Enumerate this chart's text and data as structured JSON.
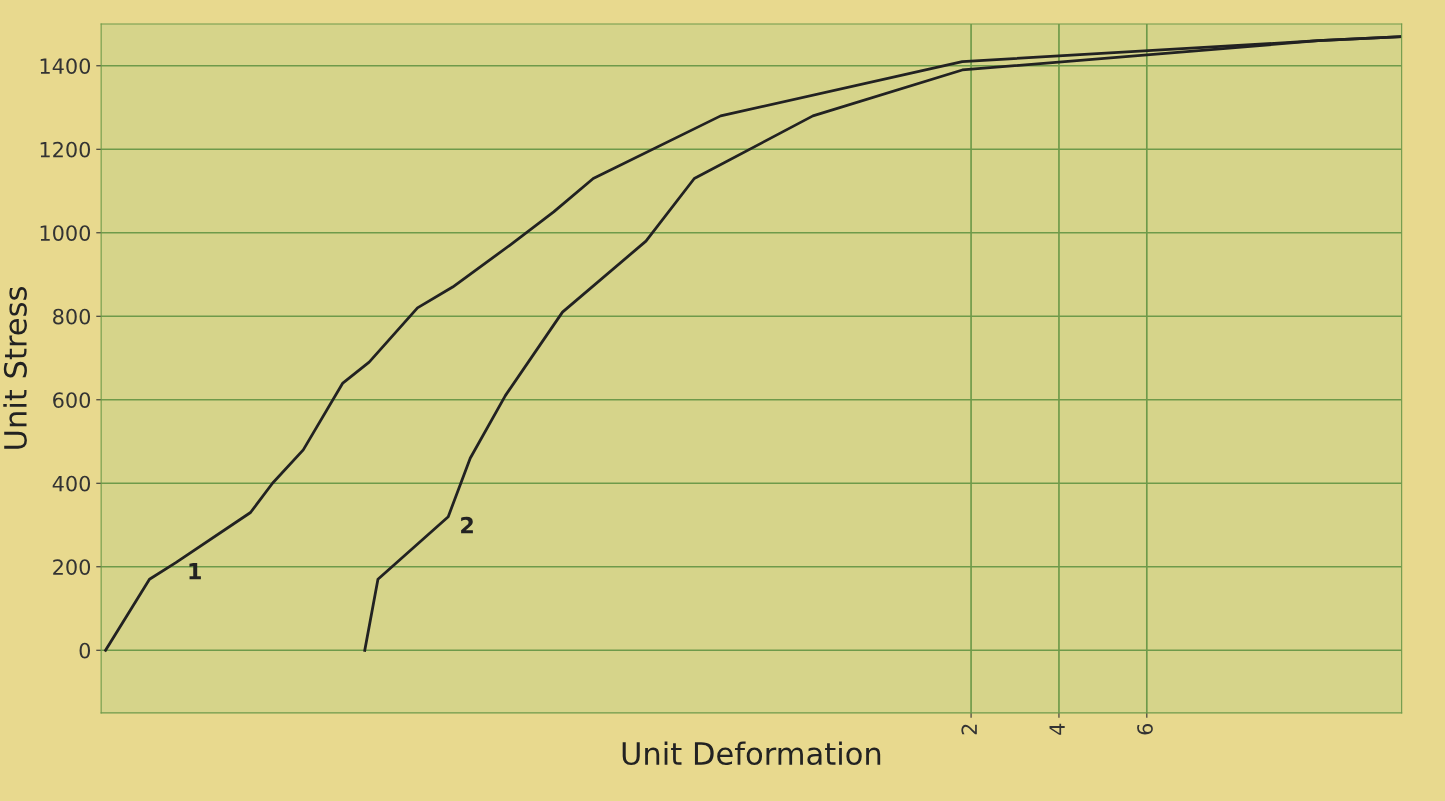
{
  "chart_data": {
    "type": "line",
    "xlabel": "Unit Deformation",
    "ylabel": "Unit Stress",
    "xlim": [
      -17.8,
      11.8
    ],
    "ylim": [
      -150,
      1500
    ],
    "xticks": [
      {
        "value": 2,
        "label": "2"
      },
      {
        "value": 4,
        "label": "4"
      },
      {
        "value": 6,
        "label": "6"
      }
    ],
    "yticks": [
      0,
      200,
      400,
      600,
      800,
      1000,
      1200,
      1400
    ],
    "grid": true,
    "legend": false,
    "marker": "none",
    "line_style": "solid",
    "series": [
      {
        "name": "1",
        "color": "#222222",
        "x": [
          -17.7,
          -16.7,
          -16.1,
          -14.4,
          -13.9,
          -13.2,
          -12.3,
          -11.7,
          -10.6,
          -9.8,
          -8.5,
          -7.5,
          -6.6,
          -3.7,
          1.8,
          9.9,
          11.8
        ],
        "values": [
          0,
          170,
          210,
          330,
          400,
          480,
          640,
          690,
          820,
          870,
          970,
          1050,
          1130,
          1280,
          1410,
          1460,
          1470
        ]
      },
      {
        "name": "2",
        "color": "#222222",
        "x": [
          -11.8,
          -11.5,
          -9.9,
          -9.4,
          -8.6,
          -7.3,
          -5.4,
          -4.3,
          -1.6,
          1.8,
          9.9,
          11.8
        ],
        "values": [
          0,
          170,
          320,
          460,
          610,
          810,
          980,
          1130,
          1280,
          1390,
          1460,
          1470
        ]
      }
    ]
  }
}
